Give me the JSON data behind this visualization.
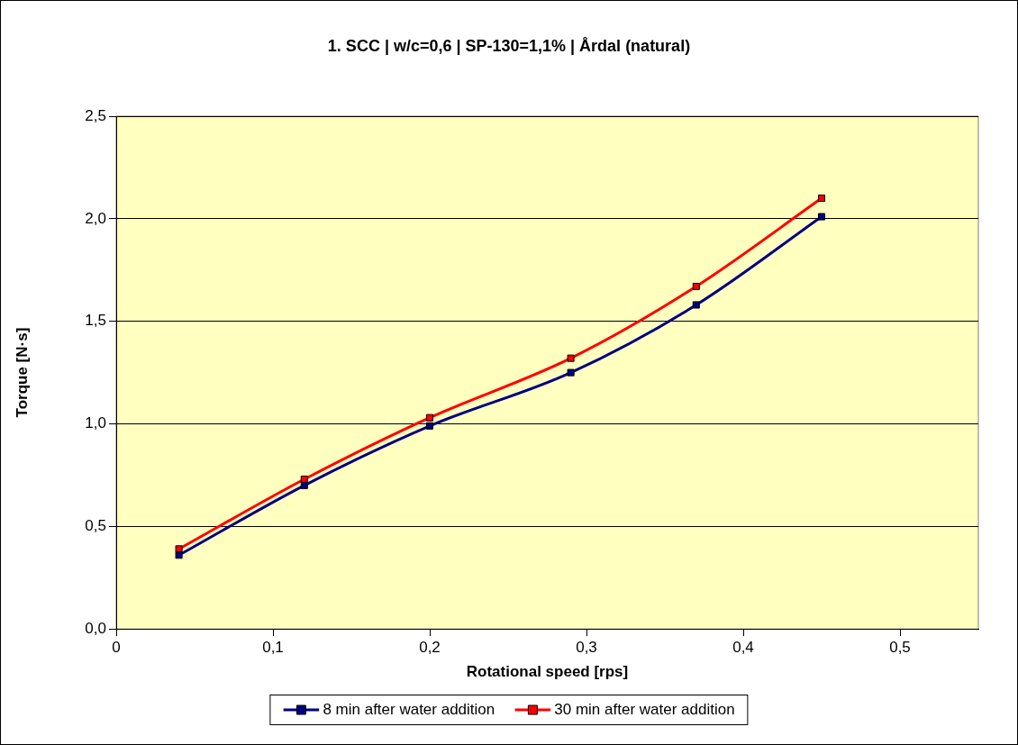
{
  "chart_data": {
    "type": "line",
    "title": "1. SCC | w/c=0,6 | SP-130=1,1% | Årdal (natural)",
    "xlabel": "Rotational speed [rps]",
    "ylabel": "Torque [N·s]",
    "x": [
      0.04,
      0.12,
      0.2,
      0.29,
      0.37,
      0.45
    ],
    "series": [
      {
        "name": "8 min after water addition",
        "color": "#000080",
        "values": [
          0.36,
          0.7,
          0.99,
          1.25,
          1.58,
          2.01
        ]
      },
      {
        "name": "30 min after water addition",
        "color": "#ff0000",
        "values": [
          0.39,
          0.73,
          1.03,
          1.32,
          1.67,
          2.1
        ]
      }
    ],
    "xlim": [
      0,
      0.55
    ],
    "xticks": [
      0,
      {
        "value": 0.1,
        "label": "0,1"
      },
      {
        "value": 0.2,
        "label": "0,2"
      },
      {
        "value": 0.3,
        "label": "0,3"
      },
      {
        "value": 0.4,
        "label": "0,4"
      },
      {
        "value": 0.5,
        "label": "0,5"
      }
    ],
    "ylim": [
      0,
      2.5
    ],
    "yticks": [
      {
        "value": 0,
        "label": "0,0"
      },
      {
        "value": 0.5,
        "label": "0,5"
      },
      {
        "value": 1,
        "label": "1,0"
      },
      {
        "value": 1.5,
        "label": "1,5"
      },
      {
        "value": 2,
        "label": "2,0"
      },
      {
        "value": 2.5,
        "label": "2,5"
      }
    ],
    "grid": "y",
    "legend": "bottom",
    "marker": "square",
    "line_style": "solid"
  }
}
